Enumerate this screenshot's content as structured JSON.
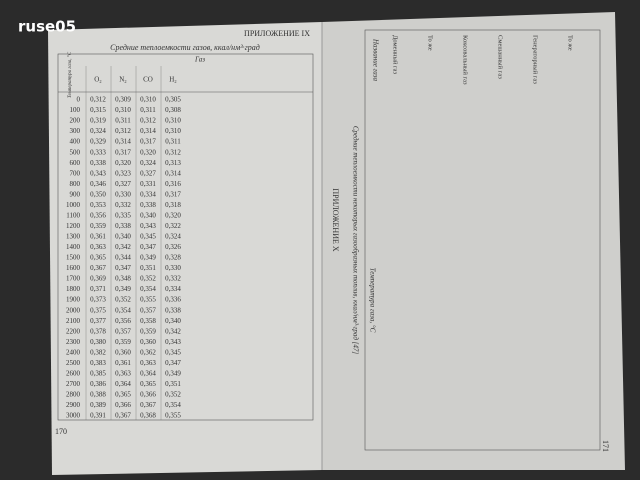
{
  "watermark": "ruse05",
  "left_page": {
    "appendix": "ПРИЛОЖЕНИЕ IX",
    "title": "Средние теплоемкости газов, ккал/нм³·град",
    "table": {
      "temperature_header": "Температура газа, °C",
      "group_header": "Газ",
      "columns": [
        "O₂",
        "N₂",
        "CO",
        "H₂"
      ],
      "rows": [
        [
          "0",
          "0,312",
          "0,309",
          "0,310",
          "0,305"
        ],
        [
          "100",
          "0,315",
          "0,310",
          "0,311",
          "0,308"
        ],
        [
          "200",
          "0,319",
          "0,311",
          "0,312",
          "0,310"
        ],
        [
          "300",
          "0,324",
          "0,312",
          "0,314",
          "0,310"
        ],
        [
          "400",
          "0,329",
          "0,314",
          "0,317",
          "0,311"
        ],
        [
          "500",
          "0,333",
          "0,317",
          "0,320",
          "0,312"
        ],
        [
          "600",
          "0,338",
          "0,320",
          "0,324",
          "0,313"
        ],
        [
          "700",
          "0,343",
          "0,323",
          "0,327",
          "0,314"
        ],
        [
          "800",
          "0,346",
          "0,327",
          "0,331",
          "0,316"
        ],
        [
          "900",
          "0,350",
          "0,330",
          "0,334",
          "0,317"
        ],
        [
          "1000",
          "0,353",
          "0,332",
          "0,338",
          "0,318"
        ],
        [
          "1100",
          "0,356",
          "0,335",
          "0,340",
          "0,320"
        ],
        [
          "1200",
          "0,359",
          "0,338",
          "0,343",
          "0,322"
        ],
        [
          "1300",
          "0,361",
          "0,340",
          "0,345",
          "0,324"
        ],
        [
          "1400",
          "0,363",
          "0,342",
          "0,347",
          "0,326"
        ],
        [
          "1500",
          "0,365",
          "0,344",
          "0,349",
          "0,328"
        ],
        [
          "1600",
          "0,367",
          "0,347",
          "0,351",
          "0,330"
        ],
        [
          "1700",
          "0,369",
          "0,348",
          "0,352",
          "0,332"
        ],
        [
          "1800",
          "0,371",
          "0,349",
          "0,354",
          "0,334"
        ],
        [
          "1900",
          "0,373",
          "0,352",
          "0,355",
          "0,336"
        ],
        [
          "2000",
          "0,375",
          "0,354",
          "0,357",
          "0,338"
        ],
        [
          "2100",
          "0,377",
          "0,356",
          "0,358",
          "0,340"
        ],
        [
          "2200",
          "0,378",
          "0,357",
          "0,359",
          "0,342"
        ],
        [
          "2300",
          "0,380",
          "0,359",
          "0,360",
          "0,343"
        ],
        [
          "2400",
          "0,382",
          "0,360",
          "0,362",
          "0,345"
        ],
        [
          "2500",
          "0,383",
          "0,361",
          "0,363",
          "0,347"
        ],
        [
          "2600",
          "0,385",
          "0,363",
          "0,364",
          "0,349"
        ],
        [
          "2700",
          "0,386",
          "0,364",
          "0,365",
          "0,351"
        ],
        [
          "2800",
          "0,388",
          "0,365",
          "0,366",
          "0,352"
        ],
        [
          "2900",
          "0,389",
          "0,366",
          "0,367",
          "0,354"
        ],
        [
          "3000",
          "0,391",
          "0,367",
          "0,368",
          "0,355"
        ]
      ]
    },
    "page_number": "170"
  },
  "right_page": {
    "appendix": "ПРИЛОЖЕНИЕ X",
    "title": "Средние теплоемкости некоторых газообразных топлив, ккал/нм³·град [47]",
    "name_header": "Название газа",
    "temperature_header": "Температура газа, °C",
    "fuels": [
      "Доменный газ",
      "То же",
      "Коксовальный газ",
      "Смешанный газ",
      "Генераторный газ",
      "То же"
    ],
    "page_number": "171"
  }
}
